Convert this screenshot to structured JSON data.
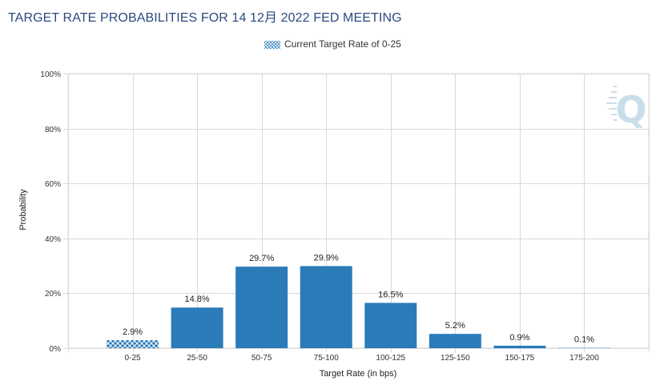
{
  "colors": {
    "bar": "#2b7bb9",
    "title": "#2b4a7e",
    "grid": "#d9d9d9",
    "watermark": "#c5dae9"
  },
  "legend": {
    "label": "Current Target Rate of 0-25",
    "icon": "crosshatch-swatch-icon"
  },
  "watermark": {
    "letter": "Q"
  },
  "chart_data": {
    "type": "bar",
    "title": "TARGET RATE PROBABILITIES FOR 14 12月 2022 FED MEETING",
    "xlabel": "Target Rate (in bps)",
    "ylabel": "Probability",
    "ylim": [
      0,
      100
    ],
    "yticks": [
      "0%",
      "20%",
      "40%",
      "60%",
      "80%",
      "100%"
    ],
    "ytick_values": [
      0,
      20,
      40,
      60,
      80,
      100
    ],
    "grid": true,
    "legend_position": "top-center",
    "categories": [
      "0-25",
      "25-50",
      "50-75",
      "75-100",
      "100-125",
      "125-150",
      "150-175",
      "175-200"
    ],
    "values": [
      2.9,
      14.8,
      29.7,
      29.9,
      16.5,
      5.2,
      0.9,
      0.1
    ],
    "labels": [
      "2.9%",
      "14.8%",
      "29.7%",
      "29.9%",
      "16.5%",
      "5.2%",
      "0.9%",
      "0.1%"
    ],
    "current_category": "0-25"
  }
}
